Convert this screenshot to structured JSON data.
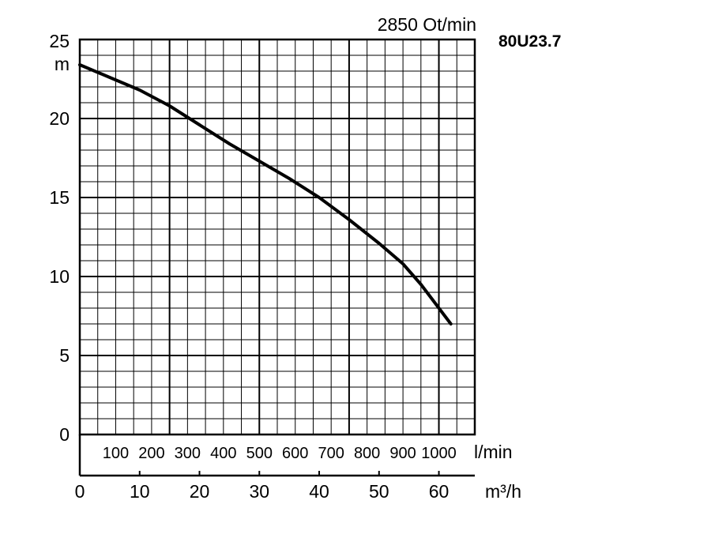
{
  "chart_data": {
    "type": "line",
    "model": "80U23.7",
    "speed_label": "2850 Ot/min",
    "y_unit": "m",
    "y_ticks": [
      0,
      5,
      10,
      15,
      20,
      25
    ],
    "ylim": [
      0,
      25
    ],
    "x_unit": "m³/h",
    "x_ticks": [
      0,
      10,
      20,
      30,
      40,
      50,
      60
    ],
    "xlim": [
      0,
      66
    ],
    "secondary_x_unit": "l/min",
    "secondary_x_ticks": [
      100,
      200,
      300,
      400,
      500,
      600,
      700,
      800,
      900,
      1000
    ],
    "grid": true,
    "series": [
      {
        "x": [
          0,
          5,
          10,
          15,
          20,
          25,
          30,
          35,
          40,
          45,
          50,
          54,
          57,
          59,
          61,
          62
        ],
        "y": [
          23.4,
          22.6,
          21.8,
          20.8,
          19.6,
          18.4,
          17.3,
          16.2,
          15.0,
          13.6,
          12.1,
          10.8,
          9.5,
          8.5,
          7.5,
          7.0
        ]
      }
    ]
  }
}
